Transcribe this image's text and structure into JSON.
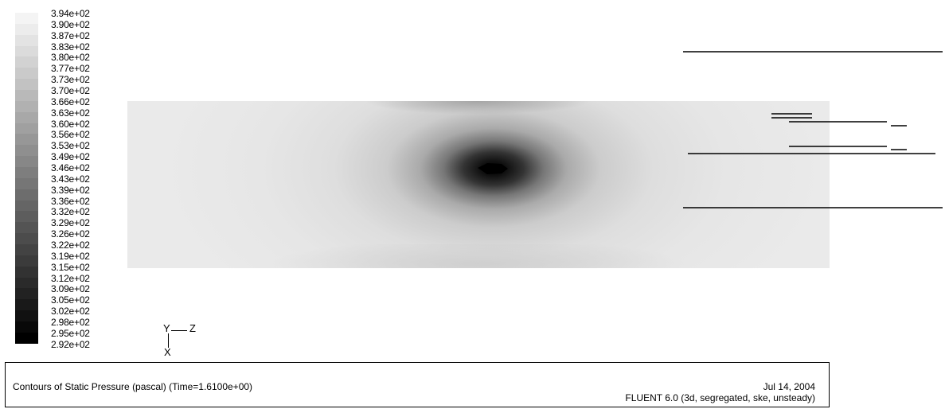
{
  "legend": {
    "labels": [
      "3.94e+02",
      "3.90e+02",
      "3.87e+02",
      "3.83e+02",
      "3.80e+02",
      "3.77e+02",
      "3.73e+02",
      "3.70e+02",
      "3.66e+02",
      "3.63e+02",
      "3.60e+02",
      "3.56e+02",
      "3.53e+02",
      "3.49e+02",
      "3.46e+02",
      "3.43e+02",
      "3.39e+02",
      "3.36e+02",
      "3.32e+02",
      "3.29e+02",
      "3.26e+02",
      "3.22e+02",
      "3.19e+02",
      "3.15e+02",
      "3.12e+02",
      "3.09e+02",
      "3.05e+02",
      "3.02e+02",
      "2.98e+02",
      "2.95e+02",
      "2.92e+02"
    ],
    "color_high": "#f4f4f4",
    "color_low": "#000000"
  },
  "axes": {
    "y": "Y",
    "z": "Z",
    "x": "X"
  },
  "caption": {
    "title": "Contours of Static Pressure (pascal)  (Time=1.6100e+00)",
    "date": "Jul 14, 2004",
    "solver": "FLUENT 6.0 (3d, segregated, ske, unsteady)"
  }
}
